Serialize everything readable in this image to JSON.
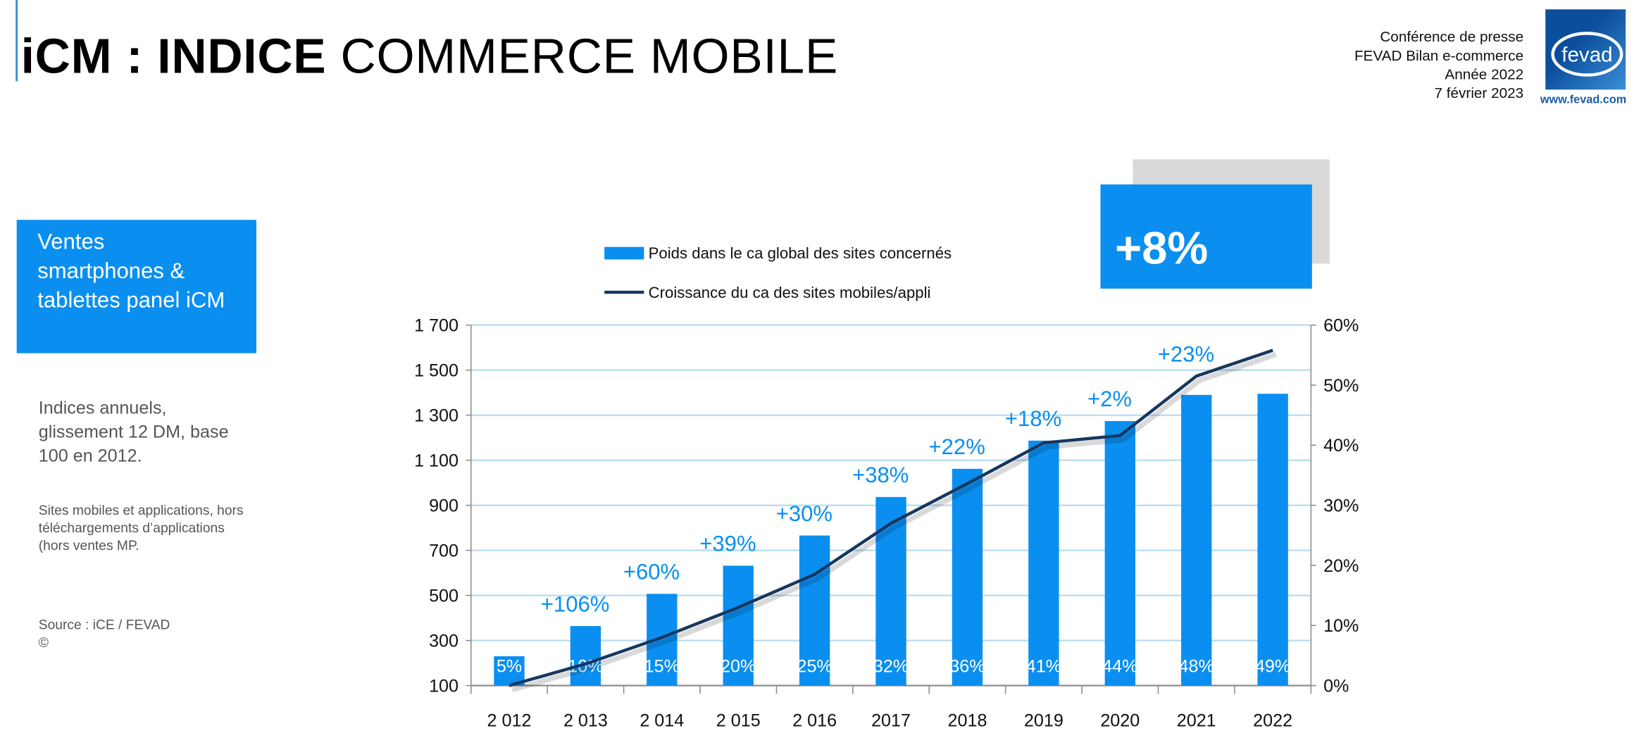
{
  "header": {
    "title_bold": "iCM : INDICE",
    "title_rest": " COMMERCE MOBILE",
    "conference": [
      "Conférence de presse",
      "FEVAD Bilan e-commerce",
      "Année 2022",
      "7 février 2023"
    ],
    "logo_text": "fevad",
    "logo_url": "www.fevad.com"
  },
  "sidebar": {
    "box": "Ventes smartphones & tablettes panel iCM",
    "desc": "Indices annuels, glissement 12 DM, base 100 en 2012.",
    "note": "Sites mobiles et applications, hors téléchargements d’applications (hors ventes MP.",
    "source": "Source : iCE / FEVAD",
    "copyright": "©"
  },
  "kpi": "+8%",
  "colors": {
    "bar": "#0a8ff0",
    "line": "#17375e",
    "grid": "#b7dcf2",
    "accent": "#0a8ff0"
  },
  "chart_data": {
    "type": "bar+line",
    "categories": [
      "2 012",
      "2 013",
      "2 014",
      "2 015",
      "2 016",
      "2017",
      "2018",
      "2019",
      "2020",
      "2021",
      "2022"
    ],
    "y_left": {
      "ticks": [
        "1 700",
        "1 500",
        "1 300",
        "1 100",
        "900",
        "700",
        "500",
        "300",
        "100"
      ],
      "range": [
        100,
        1700
      ]
    },
    "y_right": {
      "ticks": [
        "60%",
        "50%",
        "40%",
        "30%",
        "20%",
        "10%",
        "0%"
      ],
      "range": [
        0,
        60
      ]
    },
    "grid": true,
    "legend_placement": "top",
    "series": [
      {
        "name": "Poids dans le ca global des sites concernés",
        "type": "bar",
        "axis": "left",
        "values": [
          230,
          364,
          507,
          632,
          766,
          937,
          1062,
          1187,
          1274,
          1390,
          1395
        ],
        "labels": [
          "5%",
          "10%",
          "15%",
          "20%",
          "25%",
          "32%",
          "36%",
          "41%",
          "44%",
          "48%",
          "49%"
        ]
      },
      {
        "name": "Croissance du ca des sites mobiles/appli",
        "type": "line",
        "axis": "right",
        "values": [
          0,
          3.6,
          8,
          13,
          18.5,
          27,
          33.6,
          40.4,
          41.6,
          51.5,
          55.8
        ],
        "labels": [
          "",
          "+106%",
          "+60%",
          "+39%",
          "+30%",
          "+38%",
          "+22%",
          "+18%",
          "+2%",
          "+23%",
          ""
        ]
      }
    ]
  }
}
